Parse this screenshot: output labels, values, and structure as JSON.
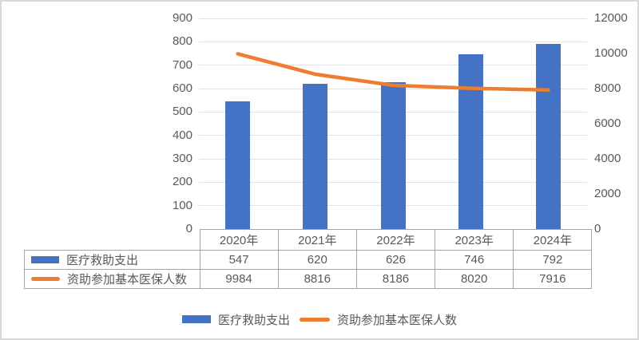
{
  "chart_data": {
    "type": "bar+line combo",
    "title": "",
    "categories": [
      "2020年",
      "2021年",
      "2022年",
      "2023年",
      "2024年"
    ],
    "series": [
      {
        "name": "医疗救助支出",
        "type": "bar",
        "axis": "left",
        "color": "#4472C4",
        "values": [
          547,
          620,
          626,
          746,
          792
        ]
      },
      {
        "name": "资助参加基本医保人数",
        "type": "line",
        "axis": "right",
        "color": "#ED7D31",
        "values": [
          9984,
          8816,
          8186,
          8020,
          7916
        ]
      }
    ],
    "left_axis": {
      "min": 0,
      "max": 900,
      "step": 100,
      "ticks": [
        "900",
        "800",
        "700",
        "600",
        "500",
        "400",
        "300",
        "200",
        "100",
        "0"
      ]
    },
    "right_axis": {
      "min": 0,
      "max": 12000,
      "step": 2000,
      "ticks": [
        "12000",
        "10000",
        "8000",
        "6000",
        "4000",
        "2000",
        "0"
      ]
    },
    "grid": true,
    "gridline_color": "#e2e2e2",
    "table_border_color": "#a6a6a6",
    "text_color": "#595959",
    "legend_position": "bottom",
    "data_table_shown": true
  }
}
